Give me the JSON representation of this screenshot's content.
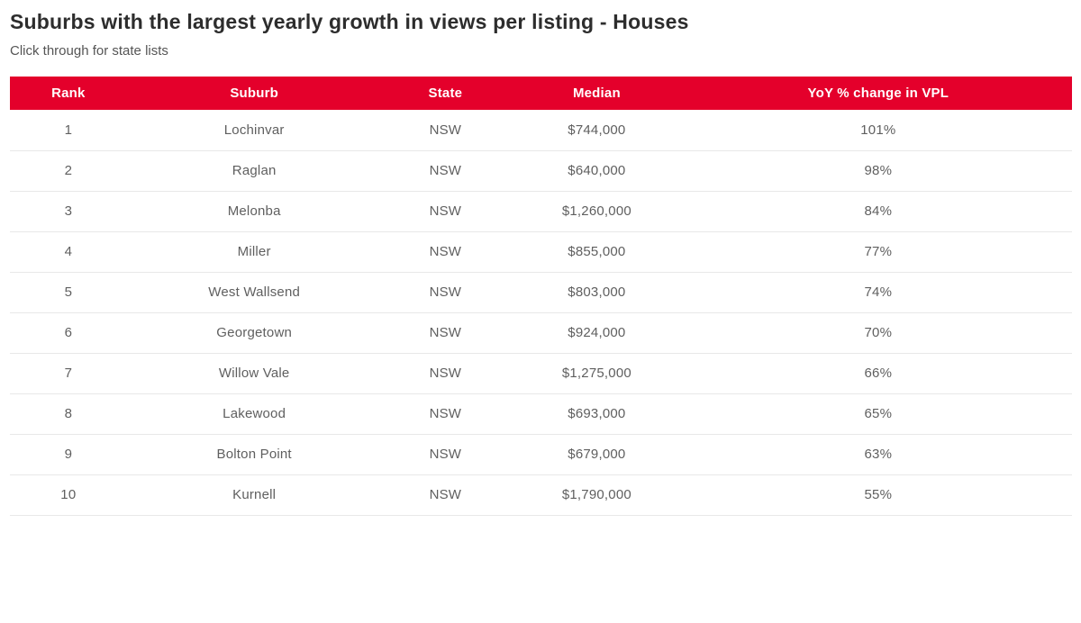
{
  "header": {
    "title": "Suburbs with the largest yearly growth in views per listing - Houses",
    "subtitle": "Click through for state lists"
  },
  "colors": {
    "header_bg": "#e4002b",
    "header_text": "#ffffff",
    "title_text": "#2d2d2d",
    "body_text": "#5f5f5f",
    "row_border": "#e8e8e8",
    "page_bg": "#ffffff"
  },
  "chart_data": {
    "type": "table",
    "title": "Suburbs with the largest yearly growth in views per listing - Houses",
    "subtitle": "Click through for state lists",
    "columns": [
      "Rank",
      "Suburb",
      "State",
      "Median",
      "YoY % change in VPL"
    ],
    "rows": [
      [
        "1",
        "Lochinvar",
        "NSW",
        "$744,000",
        "101%"
      ],
      [
        "2",
        "Raglan",
        "NSW",
        "$640,000",
        "98%"
      ],
      [
        "3",
        "Melonba",
        "NSW",
        "$1,260,000",
        "84%"
      ],
      [
        "4",
        "Miller",
        "NSW",
        "$855,000",
        "77%"
      ],
      [
        "5",
        "West Wallsend",
        "NSW",
        "$803,000",
        "74%"
      ],
      [
        "6",
        "Georgetown",
        "NSW",
        "$924,000",
        "70%"
      ],
      [
        "7",
        "Willow Vale",
        "NSW",
        "$1,275,000",
        "66%"
      ],
      [
        "8",
        "Lakewood",
        "NSW",
        "$693,000",
        "65%"
      ],
      [
        "9",
        "Bolton Point",
        "NSW",
        "$679,000",
        "63%"
      ],
      [
        "10",
        "Kurnell",
        "NSW",
        "$1,790,000",
        "55%"
      ]
    ]
  }
}
